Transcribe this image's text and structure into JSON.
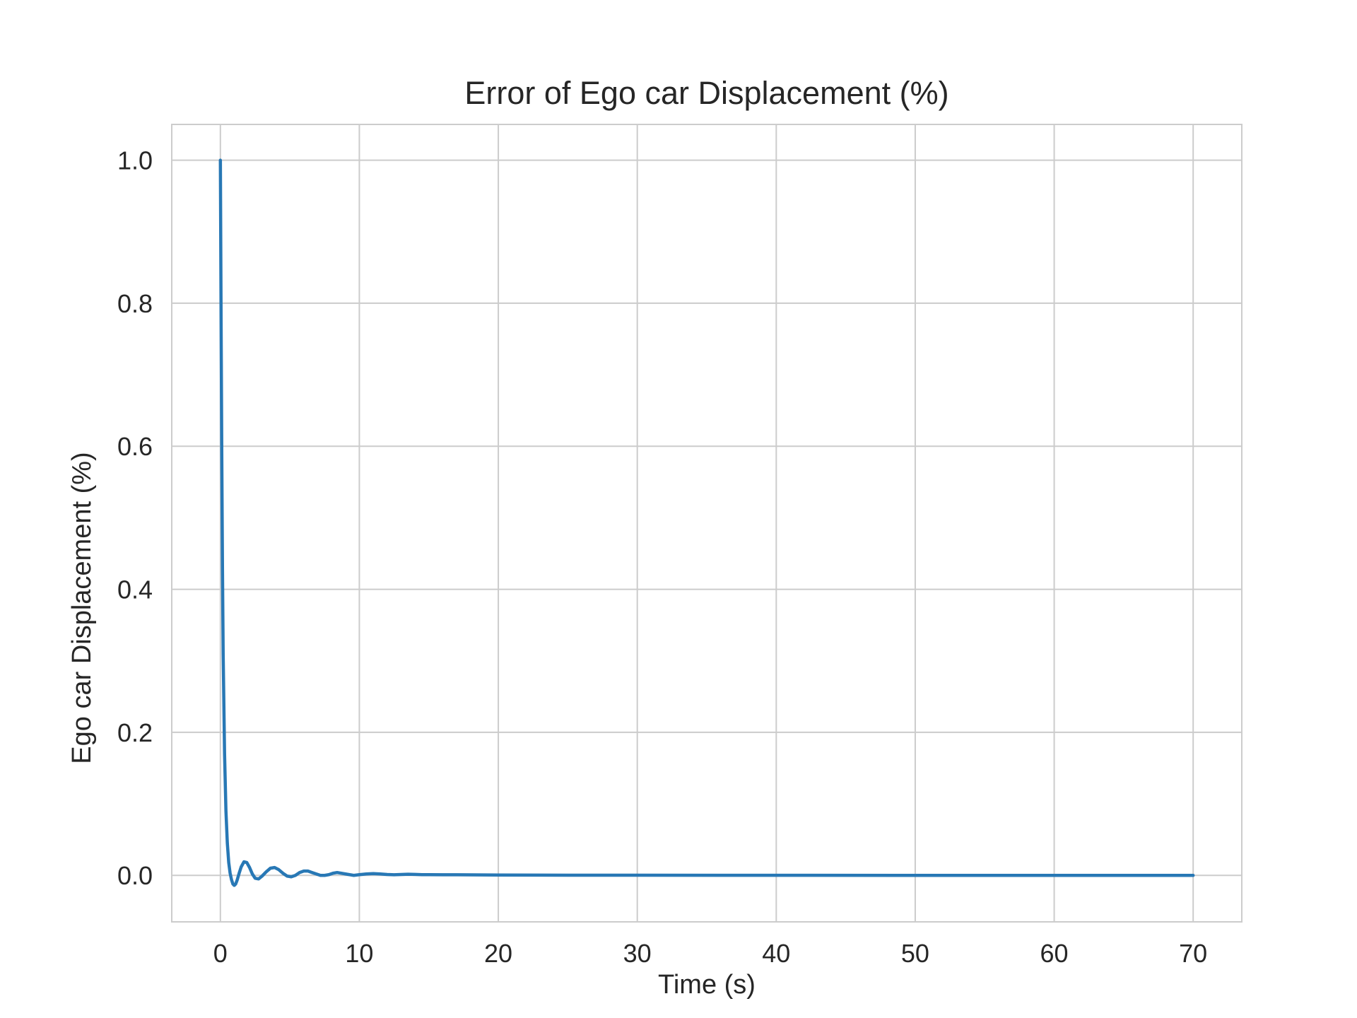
{
  "chart_data": {
    "type": "line",
    "title": "Error of Ego car Displacement (%)",
    "xlabel": "Time (s)",
    "ylabel": "Ego car Displacement (%)",
    "xlim": [
      -3.5,
      73.5
    ],
    "ylim": [
      -0.065,
      1.05
    ],
    "xticks": [
      0,
      10,
      20,
      30,
      40,
      50,
      60,
      70
    ],
    "yticks": [
      0.0,
      0.2,
      0.4,
      0.6,
      0.8,
      1.0
    ],
    "xtick_labels": [
      "0",
      "10",
      "20",
      "30",
      "40",
      "50",
      "60",
      "70"
    ],
    "ytick_labels": [
      "0.0",
      "0.2",
      "0.4",
      "0.6",
      "0.8",
      "1.0"
    ],
    "grid": true,
    "colors": {
      "line": "#2878b5",
      "grid": "#cccccc",
      "spine": "#cccccc"
    },
    "series": [
      {
        "x": [
          0,
          0.05,
          0.1,
          0.15,
          0.2,
          0.3,
          0.4,
          0.5,
          0.6,
          0.7,
          0.8,
          0.9,
          1.0,
          1.1,
          1.2,
          1.35,
          1.5,
          1.7,
          1.9,
          2.1,
          2.3,
          2.5,
          2.75,
          3.0,
          3.3,
          3.6,
          3.9,
          4.2,
          4.5,
          4.8,
          5.1,
          5.4,
          5.7,
          6.0,
          6.3,
          6.6,
          6.9,
          7.2,
          7.5,
          7.8,
          8.1,
          8.4,
          8.7,
          9.0,
          9.3,
          9.6,
          10.0,
          10.5,
          11.0,
          11.5,
          12.0,
          12.5,
          13.0,
          13.5,
          14.0,
          14.5,
          15.0,
          16.0,
          17.0,
          18.0,
          20.0,
          25.0,
          30.0,
          40.0,
          50.0,
          60.0,
          70.0
        ],
        "y": [
          1.0,
          0.78,
          0.59,
          0.43,
          0.31,
          0.17,
          0.09,
          0.045,
          0.018,
          0.003,
          -0.006,
          -0.012,
          -0.014,
          -0.012,
          -0.007,
          0.003,
          0.012,
          0.019,
          0.018,
          0.011,
          0.002,
          -0.004,
          -0.005,
          -0.001,
          0.005,
          0.01,
          0.011,
          0.008,
          0.003,
          -0.001,
          -0.002,
          0.0,
          0.004,
          0.006,
          0.006,
          0.004,
          0.002,
          0.0,
          0.0,
          0.001,
          0.003,
          0.004,
          0.003,
          0.002,
          0.001,
          0.0,
          0.001,
          0.002,
          0.0025,
          0.002,
          0.0012,
          0.0008,
          0.0012,
          0.0016,
          0.0014,
          0.001,
          0.001,
          0.0009,
          0.0008,
          0.0007,
          0.0005,
          0.0003,
          0.0002,
          0.0001,
          0.0,
          0.0,
          0.0
        ]
      }
    ]
  }
}
